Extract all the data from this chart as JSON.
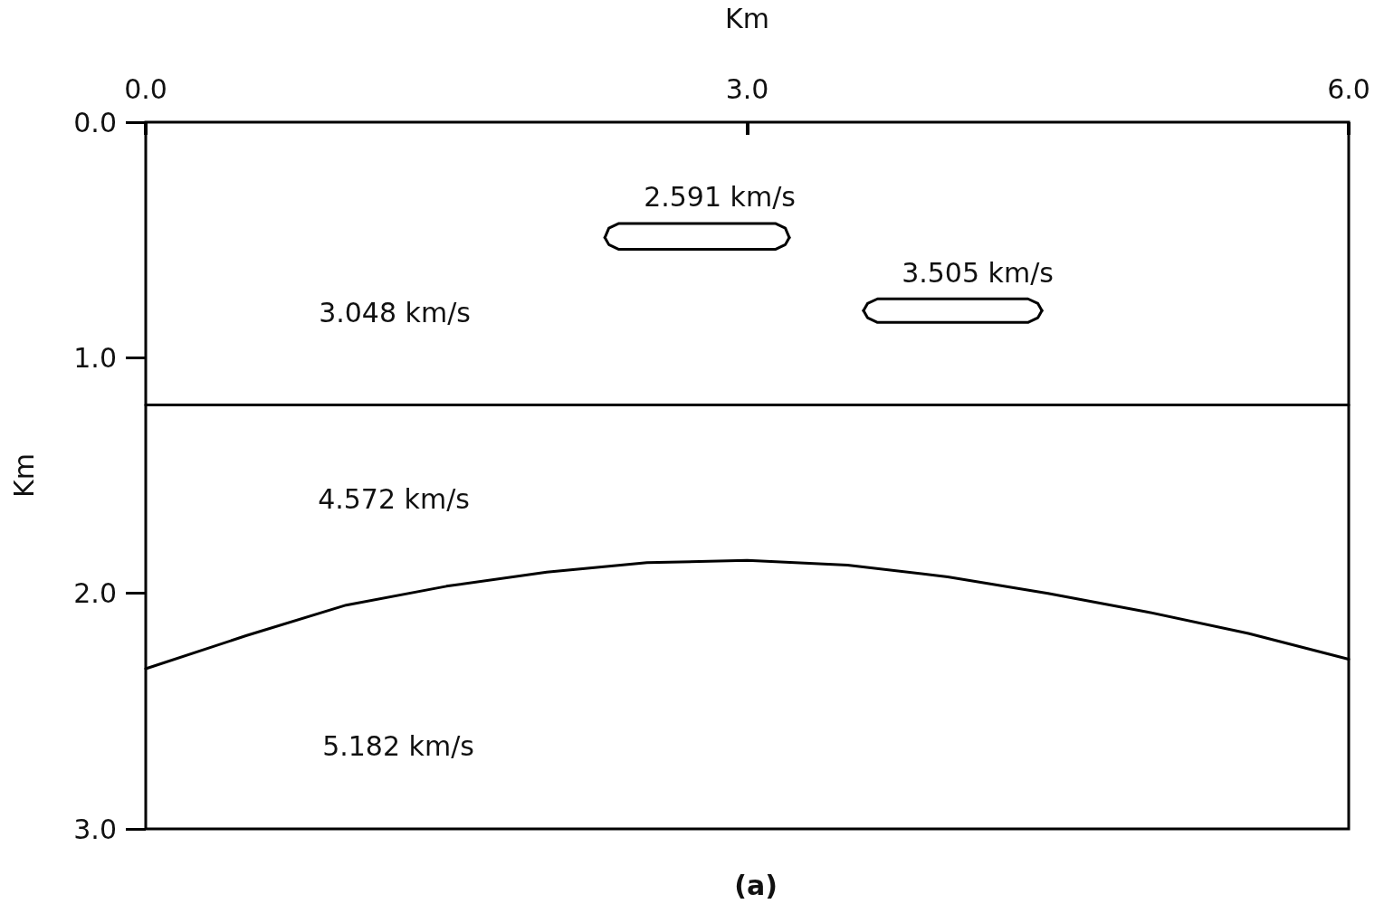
{
  "chart_data": {
    "type": "line",
    "xlabel": "Km",
    "ylabel": "Km",
    "xlim": [
      0,
      6
    ],
    "xticks": [
      {
        "value": 0,
        "label": "0.0"
      },
      {
        "value": 3,
        "label": "3.0"
      },
      {
        "value": 6,
        "label": "6.0"
      }
    ],
    "ylim": [
      3,
      0
    ],
    "yticks": [
      {
        "value": 0,
        "label": "0.0"
      },
      {
        "value": 1,
        "label": "1.0"
      },
      {
        "value": 2,
        "label": "2.0"
      },
      {
        "value": 3,
        "label": "3.0"
      }
    ],
    "grid": false,
    "marker": "none",
    "line_style": "solid",
    "series": [
      {
        "color": "#000000",
        "x": [
          0,
          6
        ],
        "values": [
          1.2,
          1.2
        ]
      },
      {
        "color": "#000000",
        "x": [
          0,
          0.5,
          1,
          1.5,
          2,
          2.5,
          3,
          3.5,
          4,
          4.5,
          5,
          5.5,
          6
        ],
        "values": [
          2.32,
          2.18,
          2.05,
          1.97,
          1.91,
          1.87,
          1.86,
          1.88,
          1.93,
          2.0,
          2.08,
          2.17,
          2.28
        ]
      },
      {
        "color": "#000000",
        "x": [
          2.29,
          2.31,
          2.36,
          3.14,
          3.19,
          3.21
        ],
        "values": [
          0.49,
          0.45,
          0.43,
          0.43,
          0.45,
          0.49
        ]
      },
      {
        "color": "#000000",
        "x": [
          2.29,
          2.31,
          2.36,
          3.14,
          3.19,
          3.21
        ],
        "values": [
          0.49,
          0.52,
          0.54,
          0.54,
          0.52,
          0.49
        ]
      },
      {
        "color": "#000000",
        "x": [
          3.58,
          3.6,
          3.65,
          4.4,
          4.45,
          4.47
        ],
        "values": [
          0.8,
          0.77,
          0.75,
          0.75,
          0.77,
          0.8
        ]
      },
      {
        "color": "#000000",
        "x": [
          3.58,
          3.6,
          3.65,
          4.4,
          4.45,
          4.47
        ],
        "values": [
          0.8,
          0.83,
          0.85,
          0.85,
          0.83,
          0.8
        ]
      }
    ],
    "annotations": [
      "2.591 km/s",
      "3.505 km/s",
      "3.048 km/s",
      "4.572 km/s",
      "5.182 km/s",
      "(a)"
    ]
  }
}
